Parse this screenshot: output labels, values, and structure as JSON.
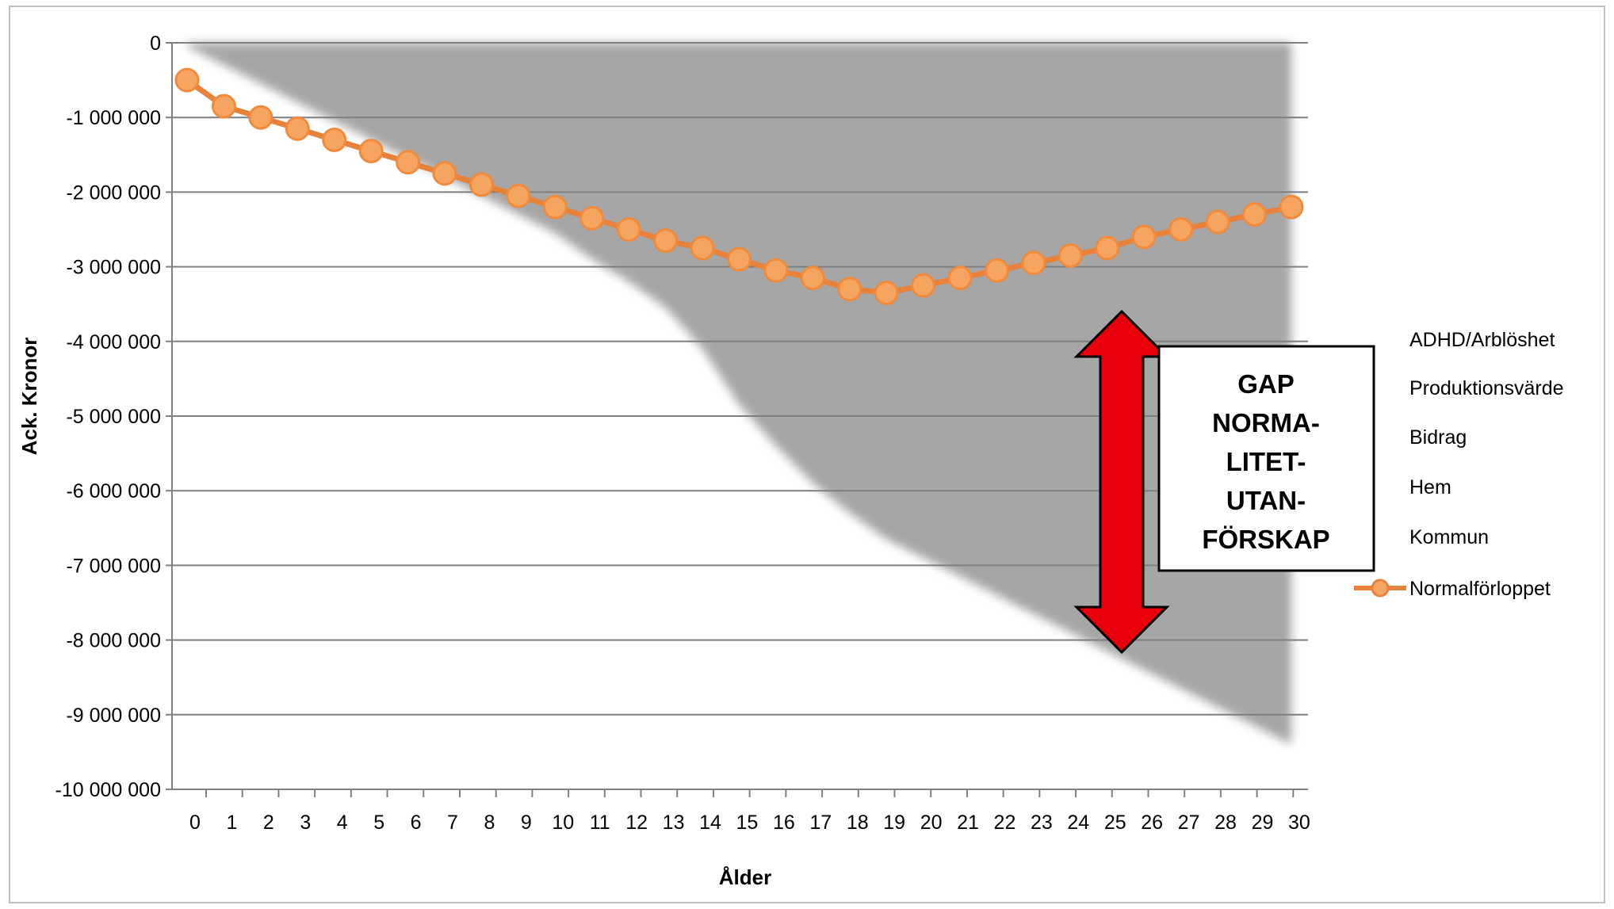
{
  "chart_data": {
    "type": "area",
    "xlabel": "Ålder",
    "ylabel": "Ack. Kronor",
    "ylim": [
      -10000000,
      0
    ],
    "x": [
      0,
      1,
      2,
      3,
      4,
      5,
      6,
      7,
      8,
      9,
      10,
      11,
      12,
      13,
      14,
      15,
      16,
      17,
      18,
      19,
      20,
      21,
      22,
      23,
      24,
      25,
      26,
      27,
      28,
      29,
      30
    ],
    "x_tick_labels": [
      "0",
      "1",
      "2",
      "3",
      "4",
      "5",
      "6",
      "7",
      "8",
      "9",
      "10",
      "11",
      "12",
      "13",
      "14",
      "15",
      "16",
      "17",
      "18",
      "19",
      "20",
      "21",
      "22",
      "23",
      "24",
      "25",
      "26",
      "27",
      "28",
      "29",
      "30"
    ],
    "y_ticks": [
      0,
      -1000000,
      -2000000,
      -3000000,
      -4000000,
      -5000000,
      -6000000,
      -7000000,
      -8000000,
      -9000000,
      -10000000
    ],
    "y_tick_labels": [
      "0",
      "-1 000 000",
      "-2 000 000",
      "-3 000 000",
      "-4 000 000",
      "-5 000 000",
      "-6 000 000",
      "-7 000 000",
      "-8 000 000",
      "-9 000 000",
      "-10 000 000"
    ],
    "grid": true,
    "legend_position": "right",
    "area_series": [
      {
        "name": "ADHD/Arblöshet",
        "color": "#a6a6a6"
      },
      {
        "name": "Produktionsvärde",
        "color": "#a6a6a6"
      },
      {
        "name": "Bidrag",
        "color": "#a6a6a6"
      },
      {
        "name": "Hem",
        "color": "#a6a6a6"
      },
      {
        "name": "Kommun",
        "color": "#a6a6a6"
      }
    ],
    "area_bottom": [
      -50000,
      -300000,
      -550000,
      -800000,
      -1050000,
      -1300000,
      -1550000,
      -1800000,
      -2050000,
      -2300000,
      -2550000,
      -2900000,
      -3200000,
      -3550000,
      -4100000,
      -4850000,
      -5400000,
      -5900000,
      -6300000,
      -6650000,
      -6900000,
      -7150000,
      -7400000,
      -7650000,
      -7900000,
      -8150000,
      -8400000,
      -8650000,
      -8900000,
      -9150000,
      -9400000
    ],
    "series": [
      {
        "name": "Normalförloppet",
        "color": "#e8823a",
        "values": [
          -500000,
          -850000,
          -1000000,
          -1150000,
          -1300000,
          -1450000,
          -1600000,
          -1750000,
          -1900000,
          -2050000,
          -2200000,
          -2350000,
          -2500000,
          -2650000,
          -2750000,
          -2900000,
          -3050000,
          -3150000,
          -3300000,
          -3350000,
          -3250000,
          -3150000,
          -3050000,
          -2950000,
          -2850000,
          -2750000,
          -2600000,
          -2500000,
          -2400000,
          -2300000,
          -2200000
        ]
      }
    ],
    "annotation": {
      "text_lines": [
        "GAP",
        "NORMA-",
        "LITET-",
        "UTAN-",
        "FÖRSKAP"
      ],
      "arrow_color": "#e8000b"
    }
  }
}
